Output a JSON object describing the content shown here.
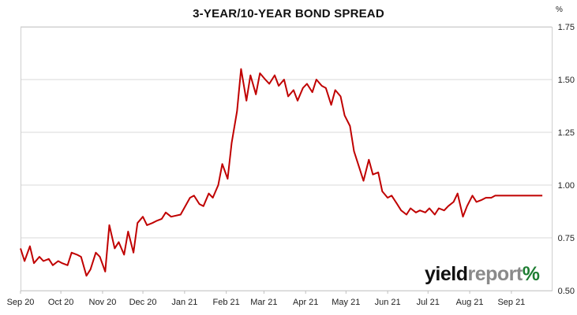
{
  "chart_data": {
    "type": "line",
    "title": "3-YEAR/10-YEAR BOND SPREAD",
    "unit": "%",
    "ylim": [
      0.5,
      1.75
    ],
    "yticks": [
      "0.50",
      "0.75",
      "1.00",
      "1.25",
      "1.50",
      "1.75"
    ],
    "x_tick_labels": [
      "Sep 20",
      "Oct 20",
      "Nov 20",
      "Dec 20",
      "Jan 21",
      "Feb 21",
      "Mar 21",
      "Apr 21",
      "May 21",
      "Jun 21",
      "Jul 21",
      "Aug 21",
      "Sep 21"
    ],
    "x_range": [
      "2020-09-01",
      "2021-10-01"
    ],
    "grid": true,
    "line_color": "#c00000",
    "series": [
      {
        "x": [
          "2020-09-01",
          "2020-09-04",
          "2020-09-08",
          "2020-09-11",
          "2020-09-15",
          "2020-09-18",
          "2020-09-22",
          "2020-09-25",
          "2020-09-29",
          "2020-10-02",
          "2020-10-06",
          "2020-10-09",
          "2020-10-13",
          "2020-10-16",
          "2020-10-20",
          "2020-10-23",
          "2020-10-27",
          "2020-10-30",
          "2020-11-03",
          "2020-11-06",
          "2020-11-10",
          "2020-11-13",
          "2020-11-17",
          "2020-11-20",
          "2020-11-24",
          "2020-11-27",
          "2020-12-01",
          "2020-12-04",
          "2020-12-08",
          "2020-12-11",
          "2020-12-15",
          "2020-12-18",
          "2020-12-22",
          "2020-12-29",
          "2021-01-05",
          "2021-01-08",
          "2021-01-12",
          "2021-01-15",
          "2021-01-19",
          "2021-01-22",
          "2021-01-26",
          "2021-01-29",
          "2021-02-02",
          "2021-02-05",
          "2021-02-09",
          "2021-02-12",
          "2021-02-16",
          "2021-02-19",
          "2021-02-23",
          "2021-02-26",
          "2021-03-02",
          "2021-03-05",
          "2021-03-09",
          "2021-03-12",
          "2021-03-16",
          "2021-03-19",
          "2021-03-23",
          "2021-03-26",
          "2021-03-30",
          "2021-04-02",
          "2021-04-06",
          "2021-04-09",
          "2021-04-13",
          "2021-04-16",
          "2021-04-20",
          "2021-04-23",
          "2021-04-27",
          "2021-04-30",
          "2021-05-04",
          "2021-05-07",
          "2021-05-11",
          "2021-05-14",
          "2021-05-18",
          "2021-05-21",
          "2021-05-25",
          "2021-05-28",
          "2021-06-01",
          "2021-06-04",
          "2021-06-08",
          "2021-06-11",
          "2021-06-15",
          "2021-06-18",
          "2021-06-22",
          "2021-06-25",
          "2021-06-29",
          "2021-07-02",
          "2021-07-06",
          "2021-07-09",
          "2021-07-13",
          "2021-07-16",
          "2021-07-20",
          "2021-07-23",
          "2021-07-27",
          "2021-07-30",
          "2021-08-03",
          "2021-08-06",
          "2021-08-10",
          "2021-08-13",
          "2021-08-17",
          "2021-08-20",
          "2021-08-24",
          "2021-08-27",
          "2021-08-31",
          "2021-09-03",
          "2021-09-07",
          "2021-09-10",
          "2021-09-14",
          "2021-09-17",
          "2021-09-21",
          "2021-09-24"
        ],
        "y": [
          0.7,
          0.64,
          0.71,
          0.63,
          0.66,
          0.64,
          0.65,
          0.62,
          0.64,
          0.63,
          0.62,
          0.68,
          0.67,
          0.66,
          0.57,
          0.6,
          0.68,
          0.66,
          0.59,
          0.81,
          0.7,
          0.73,
          0.67,
          0.78,
          0.68,
          0.82,
          0.85,
          0.81,
          0.82,
          0.83,
          0.84,
          0.87,
          0.85,
          0.86,
          0.94,
          0.95,
          0.91,
          0.9,
          0.96,
          0.94,
          1.0,
          1.1,
          1.03,
          1.2,
          1.35,
          1.55,
          1.4,
          1.52,
          1.43,
          1.53,
          1.5,
          1.48,
          1.52,
          1.47,
          1.5,
          1.42,
          1.45,
          1.4,
          1.46,
          1.48,
          1.44,
          1.5,
          1.47,
          1.46,
          1.38,
          1.45,
          1.42,
          1.33,
          1.28,
          1.16,
          1.08,
          1.02,
          1.12,
          1.05,
          1.06,
          0.97,
          0.94,
          0.95,
          0.91,
          0.88,
          0.86,
          0.89,
          0.87,
          0.88,
          0.87,
          0.89,
          0.86,
          0.89,
          0.88,
          0.9,
          0.92,
          0.96,
          0.85,
          0.9,
          0.95,
          0.92,
          0.93,
          0.94,
          0.94,
          0.95,
          0.95,
          0.95,
          0.95,
          0.95,
          0.95,
          0.95,
          0.95,
          0.95,
          0.95,
          0.95
        ]
      }
    ]
  },
  "logo": {
    "part1": "yield",
    "part2": "report",
    "part3": "%"
  }
}
